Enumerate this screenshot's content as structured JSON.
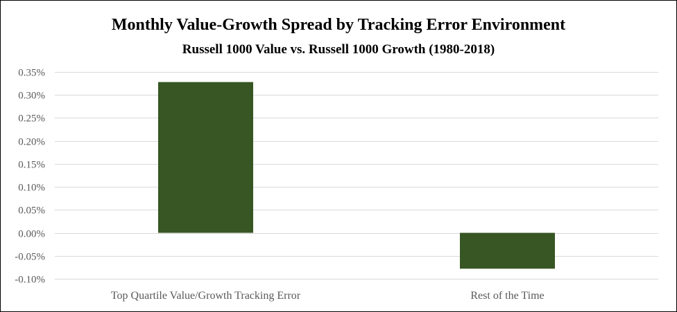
{
  "chart_data": {
    "type": "bar",
    "title": "Monthly Value-Growth Spread by Tracking Error Environment",
    "subtitle": "Russell 1000 Value vs. Russell 1000 Growth (1980-2018)",
    "xlabel": "",
    "ylabel": "",
    "categories": [
      "Top Quartile Value/Growth Tracking Error",
      "Rest of the Time"
    ],
    "values": [
      0.00328,
      -0.00078
    ],
    "ylim": [
      -0.001,
      0.0035
    ],
    "yticks": [
      0.0035,
      0.003,
      0.0025,
      0.002,
      0.0015,
      0.001,
      0.0005,
      0.0,
      -0.0005,
      -0.001
    ],
    "ytick_labels": [
      "0.35%",
      "0.30%",
      "0.25%",
      "0.20%",
      "0.15%",
      "0.10%",
      "0.05%",
      "0.00%",
      "-0.05%",
      "-0.10%"
    ],
    "grid": true,
    "legend": "none",
    "bar_color": "#375623"
  }
}
